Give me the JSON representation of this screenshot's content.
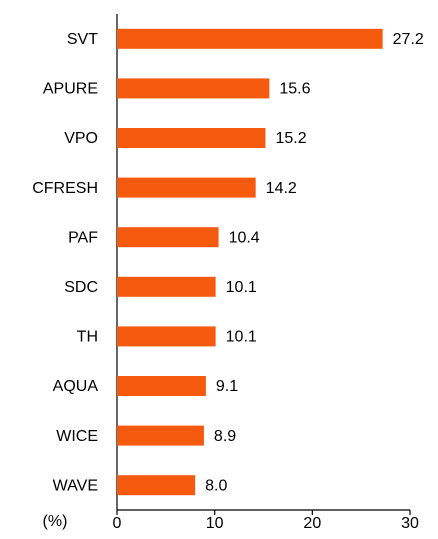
{
  "chart_data": {
    "type": "barh",
    "x_label": "(%)",
    "categories": [
      "SVT",
      "APURE",
      "VPO",
      "CFRESH",
      "PAF",
      "SDC",
      "TH",
      "AQUA",
      "WICE",
      "WAVE"
    ],
    "values": [
      27.2,
      15.6,
      15.2,
      14.2,
      10.4,
      10.1,
      10.1,
      9.1,
      8.9,
      8.0
    ],
    "value_labels": [
      "27.2",
      "15.6",
      "15.2",
      "14.2",
      "10.4",
      "10.1",
      "10.1",
      "9.1",
      "8.9",
      "8.0"
    ],
    "color": "#f55a0f",
    "xlim": [
      0,
      30
    ],
    "xticks": [
      0,
      10,
      20,
      30
    ],
    "grid": false
  }
}
